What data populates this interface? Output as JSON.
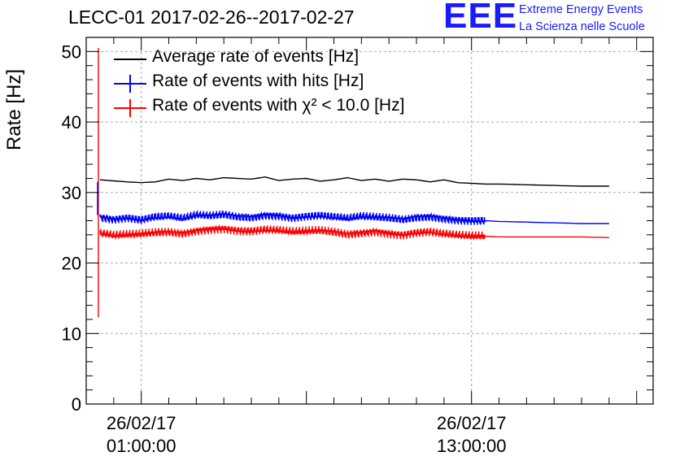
{
  "header": {
    "title": "LECC-01 2017-02-26--2017-02-27"
  },
  "logo": {
    "mark": "EEE",
    "line1": "Extreme Energy Events",
    "line2": "La Scienza nelle Scuole",
    "color": "#1a1aff"
  },
  "chart_data": {
    "type": "line",
    "title": "LECC-01 2017-02-26--2017-02-27",
    "ylabel": "Rate [Hz]",
    "xlabel": "",
    "ylim": [
      0,
      52
    ],
    "yticks": [
      0,
      10,
      20,
      30,
      40,
      50
    ],
    "yticklabels": [
      "0",
      "10",
      "20",
      "30",
      "40",
      "50"
    ],
    "x_unit": "time of day (hours since 2017-02-26 00:00)",
    "xlim": [
      -1,
      19.6
    ],
    "xticks_major": [
      {
        "x": 1,
        "line1": "26/02/17",
        "line2": "01:00:00"
      },
      {
        "x": 13,
        "line1": "26/02/17",
        "line2": "13:00:00"
      }
    ],
    "grid": true,
    "legend_placement": "top-left",
    "series": [
      {
        "name": "Average rate of events [Hz]",
        "color": "#000000",
        "x": [
          -0.5,
          0.5,
          1,
          1.5,
          2,
          2.5,
          3,
          3.5,
          4,
          4.5,
          5,
          5.5,
          6,
          6.5,
          7,
          7.5,
          8,
          8.5,
          9,
          9.5,
          10,
          10.5,
          11,
          11.5,
          12,
          12.5,
          13,
          13.5,
          14,
          15,
          16,
          17,
          18
        ],
        "values": [
          31.8,
          31.5,
          31.4,
          31.5,
          31.9,
          31.7,
          32.0,
          31.8,
          32.1,
          32.0,
          31.9,
          32.2,
          31.7,
          31.9,
          32.0,
          31.6,
          31.8,
          32.1,
          31.7,
          31.9,
          31.6,
          31.9,
          31.8,
          31.5,
          31.8,
          31.4,
          31.3,
          31.2,
          31.2,
          31.1,
          31.0,
          30.9,
          30.9
        ]
      },
      {
        "name": "Rate of events with hits [Hz]",
        "color": "#0000ff",
        "x": [
          -0.5,
          0,
          0.5,
          1,
          1.5,
          2,
          2.5,
          3,
          3.5,
          4,
          4.5,
          5,
          5.5,
          6,
          6.5,
          7,
          7.5,
          8,
          8.5,
          9,
          9.5,
          10,
          10.5,
          11,
          11.5,
          12,
          12.5,
          13,
          13.5,
          14,
          15,
          16,
          17,
          18
        ],
        "values": [
          26.5,
          26.2,
          26.4,
          26.1,
          26.5,
          26.6,
          26.3,
          26.8,
          26.7,
          26.9,
          26.6,
          26.5,
          26.8,
          26.7,
          26.4,
          26.6,
          26.7,
          26.5,
          26.3,
          26.6,
          26.5,
          26.4,
          26.2,
          26.5,
          26.6,
          26.3,
          26.1,
          26.0,
          26.0,
          25.9,
          25.8,
          25.7,
          25.6,
          25.6
        ]
      },
      {
        "name": "Rate of events with χ² < 10.0 [Hz]",
        "color": "#ff0000",
        "x": [
          -0.5,
          0,
          0.5,
          1,
          1.5,
          2,
          2.5,
          3,
          3.5,
          4,
          4.5,
          5,
          5.5,
          6,
          6.5,
          7,
          7.5,
          8,
          8.5,
          9,
          9.5,
          10,
          10.5,
          11,
          11.5,
          12,
          12.5,
          13,
          13.5,
          14,
          15,
          16,
          17,
          18
        ],
        "values": [
          24.2,
          23.9,
          24.0,
          24.1,
          24.3,
          24.4,
          24.2,
          24.6,
          24.8,
          24.9,
          24.6,
          24.5,
          24.7,
          24.6,
          24.4,
          24.5,
          24.6,
          24.4,
          24.1,
          24.3,
          24.5,
          24.2,
          24.0,
          24.3,
          24.4,
          24.1,
          23.9,
          23.8,
          23.8,
          23.7,
          23.7,
          23.7,
          23.7,
          23.6
        ]
      }
    ]
  }
}
